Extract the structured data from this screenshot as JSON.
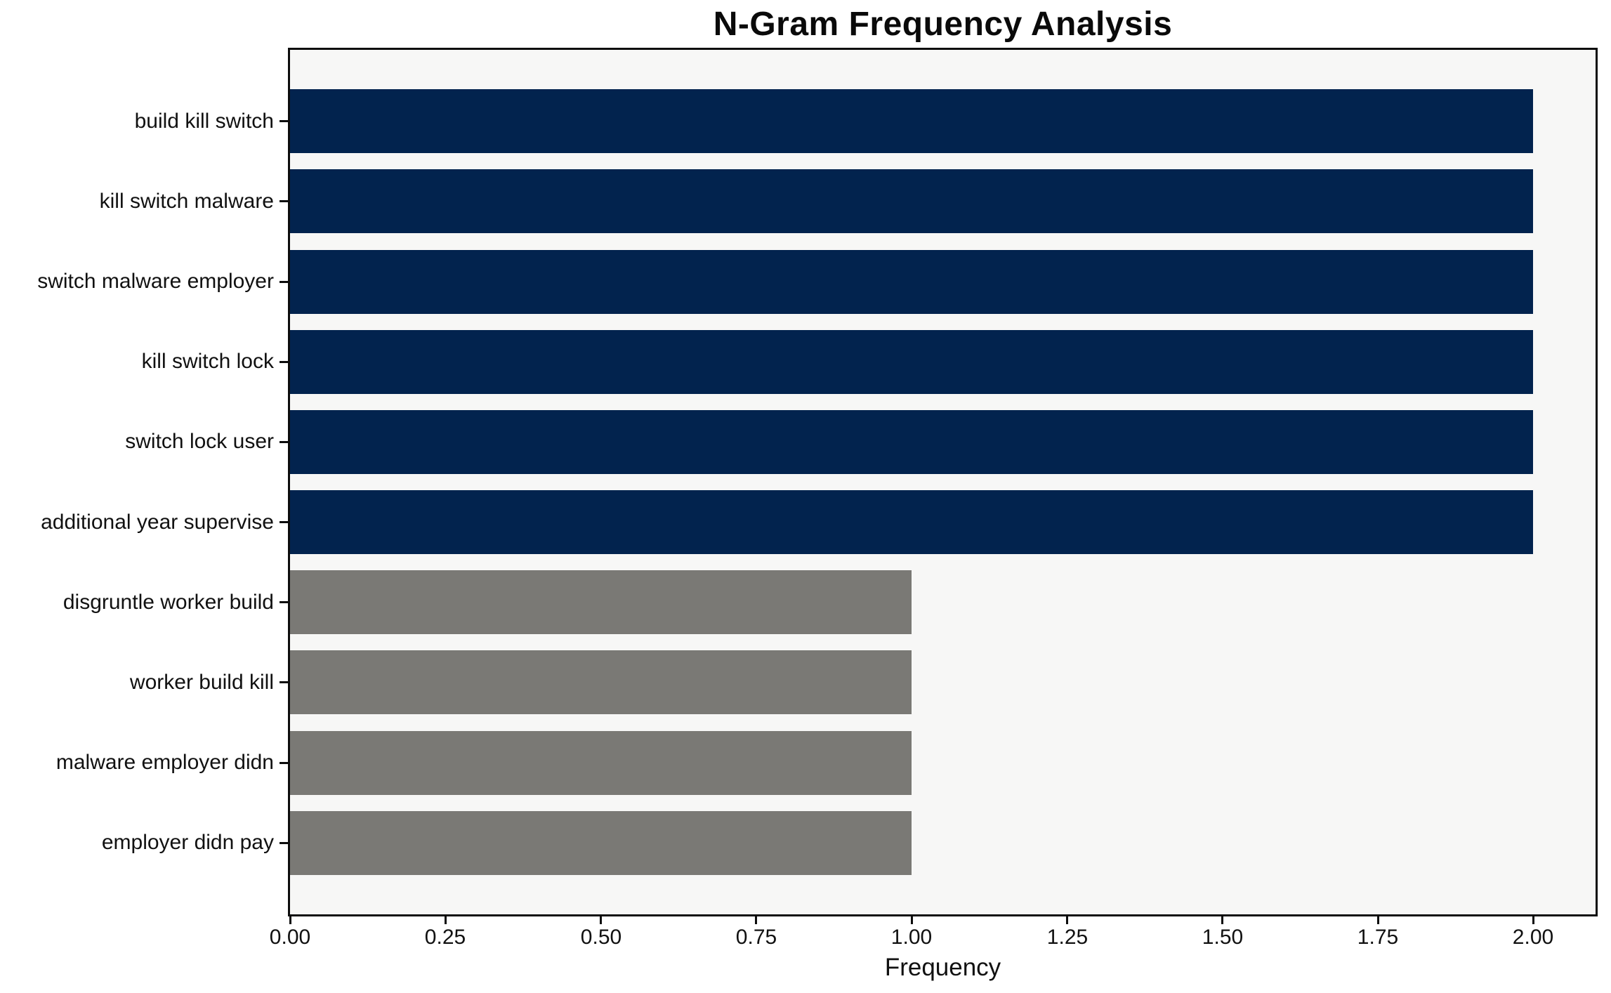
{
  "chart_data": {
    "type": "bar",
    "orientation": "horizontal",
    "title": "N-Gram Frequency Analysis",
    "xlabel": "Frequency",
    "ylabel": "",
    "categories": [
      "build kill switch",
      "kill switch malware",
      "switch malware employer",
      "kill switch lock",
      "switch lock user",
      "additional year supervise",
      "disgruntle worker build",
      "worker build kill",
      "malware employer didn",
      "employer didn pay"
    ],
    "values": [
      2,
      2,
      2,
      2,
      2,
      2,
      1,
      1,
      1,
      1
    ],
    "bar_colors": [
      "#02234e",
      "#02234e",
      "#02234e",
      "#02234e",
      "#02234e",
      "#02234e",
      "#7a7975",
      "#7a7975",
      "#7a7975",
      "#7a7975"
    ],
    "xlim": [
      0,
      2.1
    ],
    "xticks": [
      0,
      0.25,
      0.5,
      0.75,
      1,
      1.25,
      1.5,
      1.75,
      2
    ],
    "xtick_labels": [
      "0.00",
      "0.25",
      "0.50",
      "0.75",
      "1.00",
      "1.25",
      "1.50",
      "1.75",
      "2.00"
    ],
    "grid": false,
    "legend": false,
    "colors": {
      "bar_frequent": "#02234e",
      "bar_infrequent": "#7a7975",
      "plot_background": "#f7f7f6",
      "figure_background": "#ffffff",
      "spine": "#0d0d0d",
      "text": "#111111"
    }
  }
}
